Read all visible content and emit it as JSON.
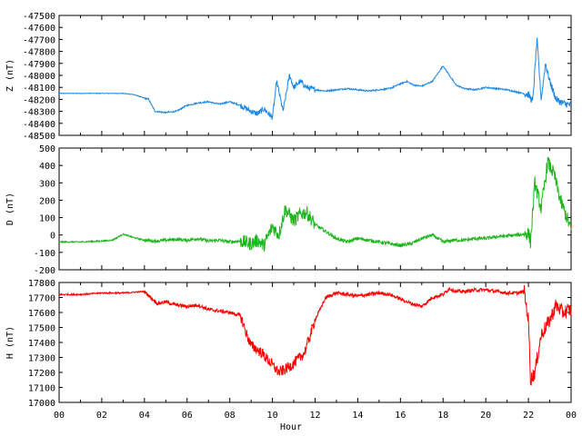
{
  "chart_data": [
    {
      "type": "line",
      "ylabel": "Z (nT)",
      "ylim": [
        -48500,
        -47500
      ],
      "yticks": [
        -47500,
        -47600,
        -47700,
        -47800,
        -47900,
        -48000,
        -48100,
        -48200,
        -48300,
        -48400,
        -48500
      ],
      "xlim": [
        0,
        24
      ],
      "color": "#1e88e5",
      "series": [
        {
          "x": [
            0,
            1,
            2,
            3,
            3.5,
            4.2,
            4.5,
            5,
            5.5,
            6,
            6.5,
            7,
            7.5,
            8,
            8.5,
            9,
            9.3,
            9.6,
            10,
            10.2,
            10.5,
            10.8,
            11,
            11.3,
            11.6,
            12,
            12.5,
            13,
            13.5,
            14,
            14.5,
            15,
            15.5,
            16,
            16.3,
            16.6,
            17,
            17.5,
            18,
            18.3,
            18.6,
            19,
            19.5,
            20,
            20.5,
            21,
            21.5,
            22,
            22.2,
            22.4,
            22.6,
            22.8,
            23,
            23.3,
            23.6,
            24
          ],
          "y": [
            -48150,
            -48150,
            -48150,
            -48150,
            -48160,
            -48200,
            -48300,
            -48310,
            -48300,
            -48250,
            -48230,
            -48220,
            -48240,
            -48220,
            -48250,
            -48300,
            -48320,
            -48280,
            -48350,
            -48050,
            -48300,
            -48000,
            -48100,
            -48050,
            -48100,
            -48120,
            -48130,
            -48120,
            -48110,
            -48120,
            -48130,
            -48120,
            -48110,
            -48070,
            -48050,
            -48080,
            -48090,
            -48050,
            -47920,
            -48000,
            -48080,
            -48110,
            -48120,
            -48100,
            -48110,
            -48120,
            -48140,
            -48160,
            -48220,
            -47700,
            -48200,
            -47900,
            -48050,
            -48200,
            -48230,
            -48250
          ]
        }
      ]
    },
    {
      "type": "line",
      "ylabel": "D (nT)",
      "ylim": [
        -200,
        500
      ],
      "yticks": [
        500,
        400,
        300,
        200,
        100,
        0,
        -100,
        -200
      ],
      "xlim": [
        0,
        24
      ],
      "color": "#1fb51f",
      "series": [
        {
          "x": [
            0,
            1,
            2,
            2.5,
            3,
            3.5,
            4,
            4.5,
            5,
            5.5,
            6,
            6.5,
            7,
            7.5,
            8,
            8.5,
            9,
            9.3,
            9.6,
            10,
            10.3,
            10.6,
            11,
            11.3,
            11.6,
            12,
            12.5,
            13,
            13.5,
            14,
            14.5,
            15,
            15.5,
            16,
            16.5,
            17,
            17.5,
            18,
            18.5,
            19,
            19.5,
            20,
            20.5,
            21,
            21.5,
            22,
            22.1,
            22.3,
            22.6,
            22.9,
            23.2,
            23.5,
            23.8,
            24
          ],
          "y": [
            -40,
            -40,
            -35,
            -30,
            5,
            -15,
            -30,
            -35,
            -30,
            -25,
            -30,
            -20,
            -35,
            -30,
            -40,
            -35,
            -50,
            -30,
            -60,
            50,
            0,
            150,
            80,
            120,
            130,
            60,
            20,
            -20,
            -40,
            -20,
            -30,
            -40,
            -50,
            -60,
            -50,
            -20,
            0,
            -40,
            -30,
            -30,
            -20,
            -20,
            -10,
            -5,
            0,
            10,
            -40,
            300,
            150,
            420,
            350,
            200,
            100,
            30
          ]
        }
      ]
    },
    {
      "type": "line",
      "ylabel": "H (nT)",
      "xlabel": "Hour",
      "ylim": [
        17000,
        17800
      ],
      "yticks": [
        17800,
        17700,
        17600,
        17500,
        17400,
        17300,
        17200,
        17100,
        17000
      ],
      "xlim": [
        0,
        24
      ],
      "xticks": [
        "00",
        "02",
        "04",
        "06",
        "08",
        "10",
        "12",
        "14",
        "16",
        "18",
        "20",
        "22",
        "00"
      ],
      "color": "#ff0000",
      "series": [
        {
          "x": [
            0,
            1,
            2,
            3,
            4,
            4.3,
            4.6,
            5,
            5.5,
            6,
            6.5,
            7,
            7.5,
            8,
            8.5,
            8.8,
            9,
            9.5,
            10,
            10.3,
            10.6,
            11,
            11.5,
            12,
            12.5,
            13,
            13.5,
            14,
            14.5,
            15,
            15.5,
            16,
            16.5,
            17,
            17.5,
            18,
            18.3,
            18.6,
            19,
            19.5,
            20,
            20.5,
            21,
            21.5,
            21.8,
            22,
            22.1,
            22.3,
            22.6,
            23,
            23.3,
            23.6,
            24
          ],
          "y": [
            17720,
            17720,
            17730,
            17730,
            17740,
            17700,
            17660,
            17670,
            17650,
            17640,
            17650,
            17620,
            17610,
            17600,
            17580,
            17450,
            17380,
            17330,
            17250,
            17200,
            17220,
            17260,
            17330,
            17550,
            17700,
            17730,
            17720,
            17710,
            17720,
            17730,
            17720,
            17690,
            17660,
            17640,
            17700,
            17720,
            17760,
            17740,
            17740,
            17750,
            17750,
            17740,
            17730,
            17730,
            17740,
            17550,
            17150,
            17200,
            17450,
            17550,
            17650,
            17600,
            17620
          ]
        }
      ]
    }
  ]
}
